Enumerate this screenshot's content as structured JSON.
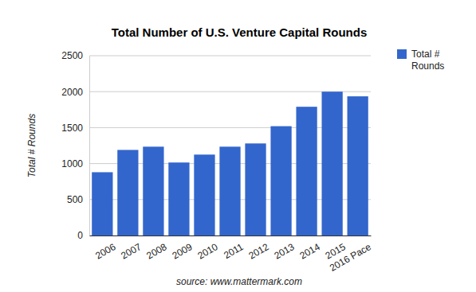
{
  "chart_data": {
    "type": "bar",
    "title": "Total Number of U.S. Venture Capital Rounds",
    "y_label": "Total # Rounds",
    "source": "source: www.mattermark.com",
    "categories": [
      "2006",
      "2007",
      "2008",
      "2009",
      "2010",
      "2011",
      "2012",
      "2013",
      "2014",
      "2015",
      "2016 Pace"
    ],
    "series": [
      {
        "name": "Total # Rounds",
        "color": "#3366cc",
        "values": [
          880,
          1190,
          1235,
          1015,
          1125,
          1235,
          1280,
          1520,
          1790,
          2000,
          1935
        ]
      }
    ],
    "ylim": [
      0,
      2500
    ],
    "yticks": [
      0,
      500,
      1000,
      1500,
      2000,
      2500
    ],
    "grid": true,
    "legend": "right"
  }
}
